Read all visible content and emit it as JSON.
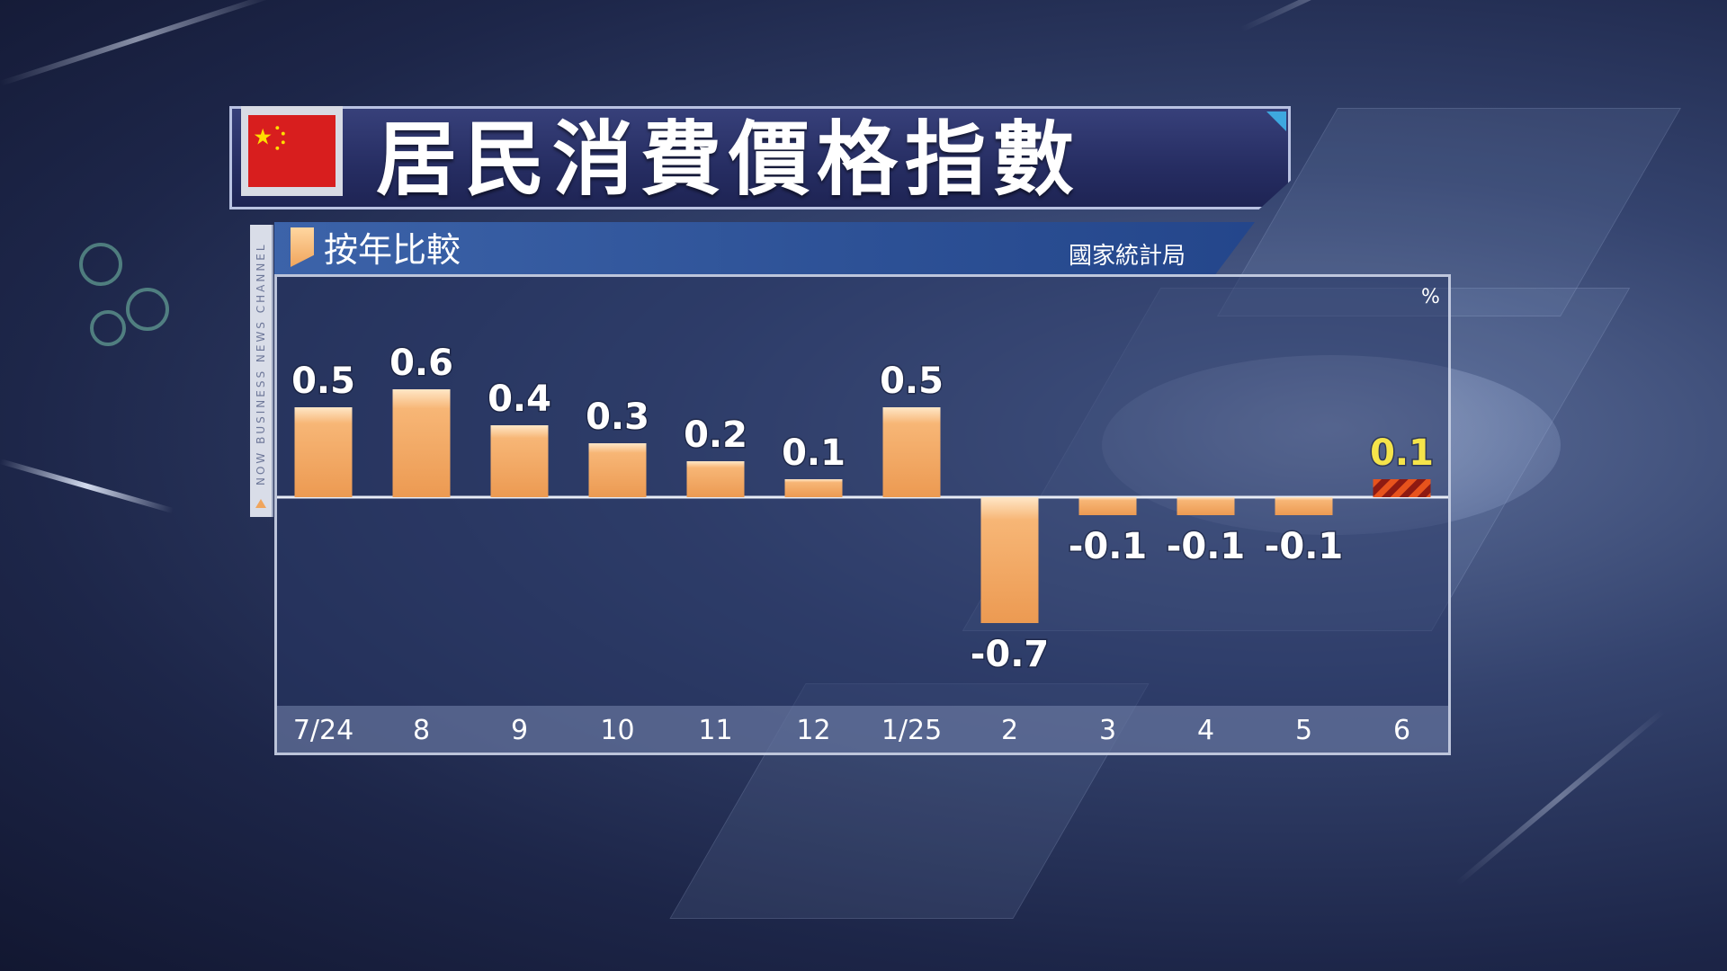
{
  "header": {
    "title": "居民消費價格指數",
    "subtitle": "按年比較",
    "source": "國家統計局",
    "side_tag": "NOW BUSINESS NEWS CHANNEL"
  },
  "colors": {
    "bar": "#f0a55d",
    "highlight_label": "#f5e44a",
    "highlight_stripe_a": "#e8531c",
    "highlight_stripe_b": "#8e1a12"
  },
  "chart_data": {
    "type": "bar",
    "categories": [
      "7/24",
      "8",
      "9",
      "10",
      "11",
      "12",
      "1/25",
      "2",
      "3",
      "4",
      "5",
      "6"
    ],
    "values": [
      0.5,
      0.6,
      0.4,
      0.3,
      0.2,
      0.1,
      0.5,
      -0.7,
      -0.1,
      -0.1,
      -0.1,
      0.1
    ],
    "labels": [
      "0.5",
      "0.6",
      "0.4",
      "0.3",
      "0.2",
      "0.1",
      "0.5",
      "-0.7",
      "-0.1",
      "-0.1",
      "-0.1",
      "0.1"
    ],
    "highlight_index": 11,
    "unit": "%",
    "ylim": [
      -0.9,
      0.9
    ],
    "grid": false,
    "legend": "none"
  }
}
